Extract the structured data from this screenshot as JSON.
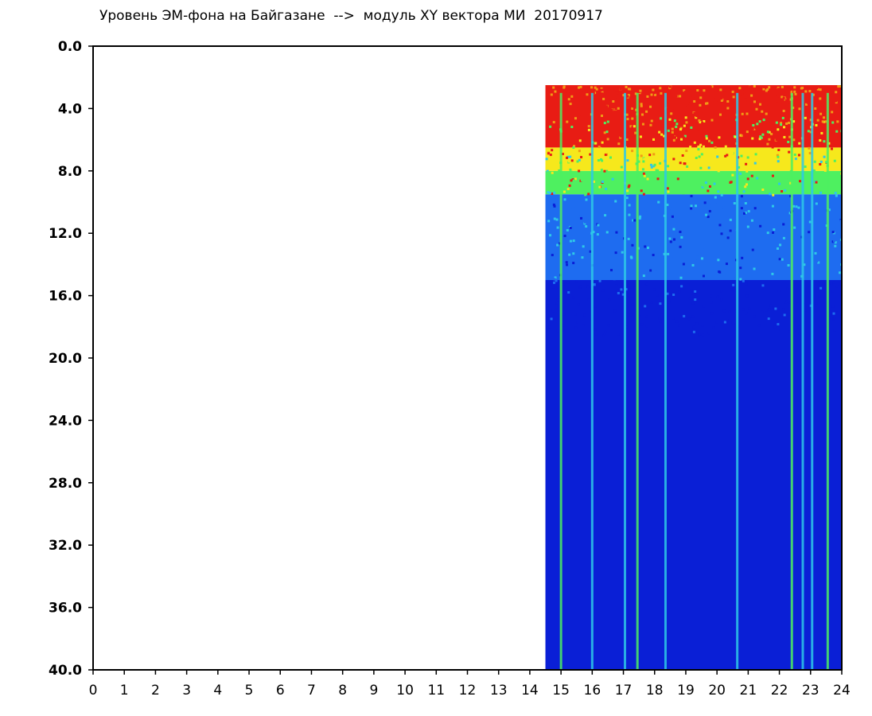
{
  "title": "Уровень ЭМ-фона на Байгазане  -->  модуль XY вектора МИ  20170917",
  "chart_data": {
    "type": "heatmap",
    "title": "Уровень ЭМ-фона на Байгазане  -->  модуль XY вектора МИ  20170917",
    "xlabel": "",
    "ylabel": "",
    "x_range": [
      0,
      24
    ],
    "y_range": [
      0.0,
      40.0
    ],
    "y_inverted": true,
    "x_ticks": [
      "0",
      "1",
      "2",
      "3",
      "4",
      "5",
      "6",
      "7",
      "8",
      "9",
      "10",
      "11",
      "12",
      "13",
      "14",
      "15",
      "16",
      "17",
      "18",
      "19",
      "20",
      "21",
      "22",
      "23",
      "24"
    ],
    "y_ticks": [
      "0.0",
      "4.0",
      "8.0",
      "12.0",
      "16.0",
      "20.0",
      "24.0",
      "28.0",
      "32.0",
      "36.0",
      "40.0"
    ],
    "data_start_x": 14.5,
    "data_end_x": 24,
    "grid": false,
    "colormap": [
      "#0a1fd6",
      "#1e6cf0",
      "#2ec8e8",
      "#4ef060",
      "#f6e81c",
      "#f09a16",
      "#e81c14"
    ],
    "bands": [
      {
        "y_from": 0.0,
        "y_to": 2.5,
        "level": "none"
      },
      {
        "y_from": 2.5,
        "y_to": 8.0,
        "level": "high"
      },
      {
        "y_from": 8.0,
        "y_to": 9.5,
        "level": "medium"
      },
      {
        "y_from": 9.5,
        "y_to": 15.0,
        "level": "low-medium"
      },
      {
        "y_from": 15.0,
        "y_to": 40.0,
        "level": "low"
      }
    ],
    "vertical_streaks_x": [
      15.0,
      16.0,
      17.05,
      17.45,
      18.35,
      20.65,
      22.4,
      22.75,
      23.05,
      23.55
    ]
  }
}
